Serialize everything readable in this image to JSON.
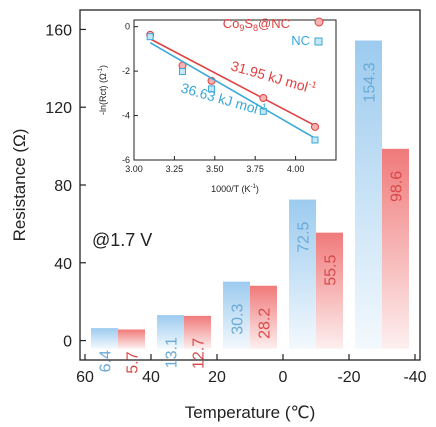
{
  "chart_data": [
    {
      "type": "bar",
      "annotation": "@1.7 V",
      "xlabel": "Temperature (℃)",
      "ylabel": "Resistance (Ω)",
      "x_tick_labels": [
        "60",
        "40",
        "20",
        "0",
        "-20",
        "-40"
      ],
      "y_tick_labels": [
        "0",
        "40",
        "80",
        "120",
        "160"
      ],
      "ylim": [
        -10,
        170
      ],
      "groups": [
        {
          "blue": 6.4,
          "red": 5.7
        },
        {
          "blue": 13.1,
          "red": 12.7
        },
        {
          "blue": 30.3,
          "red": 28.2
        },
        {
          "blue": 72.5,
          "red": 55.5
        },
        {
          "blue": 154.3,
          "red": 98.6
        }
      ],
      "colors": {
        "blue": "#9ccbef",
        "red": "#f07a7a",
        "blue_text": "#6aaad6",
        "red_text": "#d94848"
      }
    },
    {
      "type": "scatter",
      "xlabel": "1000/T (K",
      "xlabel_sup": "-1",
      "xlabel_end": ")",
      "ylabel": "-ln(Rct) (Ω",
      "ylabel_sup": "-1",
      "ylabel_end": ")",
      "xlim": [
        3.0,
        4.25
      ],
      "ylim": [
        -6,
        0.3
      ],
      "x_tick_labels": [
        "3.00",
        "3.25",
        "3.50",
        "3.75",
        "4.00"
      ],
      "y_tick_labels": [
        "0",
        "-2",
        "-4",
        "-6"
      ],
      "series": [
        {
          "name_main": "Co",
          "name_sub1": "9",
          "name_mid": "S",
          "name_sub2": "8",
          "name_end": "@NC",
          "color": "#e04040",
          "x": [
            3.1,
            3.3,
            3.48,
            3.8,
            4.12
          ],
          "y": [
            -0.37,
            -1.75,
            -2.44,
            -3.21,
            -4.51
          ],
          "fit": [
            [
              3.1,
              -0.55
            ],
            [
              4.12,
              -4.45
            ]
          ],
          "annotation": "31.95 kJ mol",
          "annotation_sup": "-1"
        },
        {
          "name": "NC",
          "color": "#3aa8d8",
          "x": [
            3.1,
            3.3,
            3.48,
            3.8,
            4.12
          ],
          "y": [
            -0.45,
            -2.02,
            -2.8,
            -3.81,
            -5.1
          ],
          "fit": [
            [
              3.1,
              -0.72
            ],
            [
              4.12,
              -5.02
            ]
          ],
          "annotation": "36.63 kJ mol",
          "annotation_sup": "-1"
        }
      ]
    }
  ]
}
